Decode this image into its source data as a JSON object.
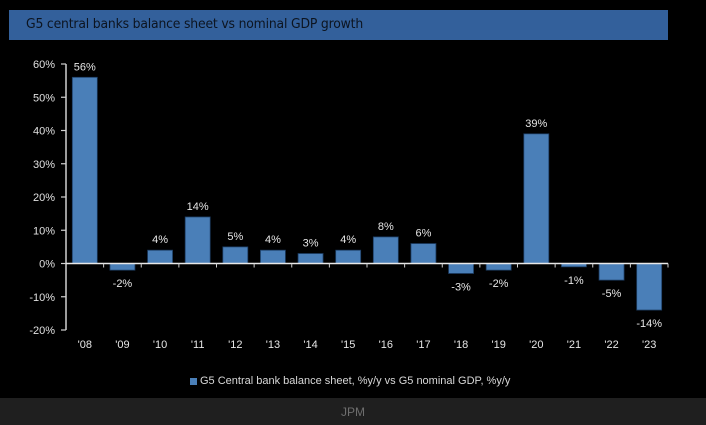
{
  "header": {
    "title": "G5 central banks balance sheet vs nominal GDP growth"
  },
  "chart_data": {
    "type": "bar",
    "title": "G5 central banks balance sheet vs nominal GDP growth",
    "xlabel": "",
    "ylabel": "",
    "categories": [
      "'08",
      "'09",
      "'10",
      "'11",
      "'12",
      "'13",
      "'14",
      "'15",
      "'16",
      "'17",
      "'18",
      "'19",
      "'20",
      "'21",
      "'22",
      "'23"
    ],
    "series": [
      {
        "name": "G5 Central bank balance sheet, %y/y vs G5 nominal GDP, %y/y",
        "values": [
          56,
          -2,
          4,
          14,
          5,
          4,
          3,
          4,
          8,
          6,
          -3,
          -2,
          39,
          -1,
          -5,
          -14
        ],
        "labels": [
          "56%",
          "-2%",
          "4%",
          "14%",
          "5%",
          "4%",
          "3%",
          "4%",
          "8%",
          "6%",
          "-3%",
          "-2%",
          "39%",
          "-1%",
          "-5%",
          "-14%"
        ],
        "color": "#4a7fb8"
      }
    ],
    "ylim": [
      -20,
      60
    ],
    "yticks": [
      -20,
      -10,
      0,
      10,
      20,
      30,
      40,
      50,
      60
    ],
    "ytick_labels": [
      "-20%",
      "-10%",
      "0%",
      "10%",
      "20%",
      "30%",
      "40%",
      "50%",
      "60%"
    ],
    "grid": false,
    "legend": "bottom-center"
  },
  "legend": {
    "label": "G5 Central bank balance sheet, %y/y vs G5 nominal GDP, %y/y"
  },
  "footer": {
    "source": "JPM"
  }
}
